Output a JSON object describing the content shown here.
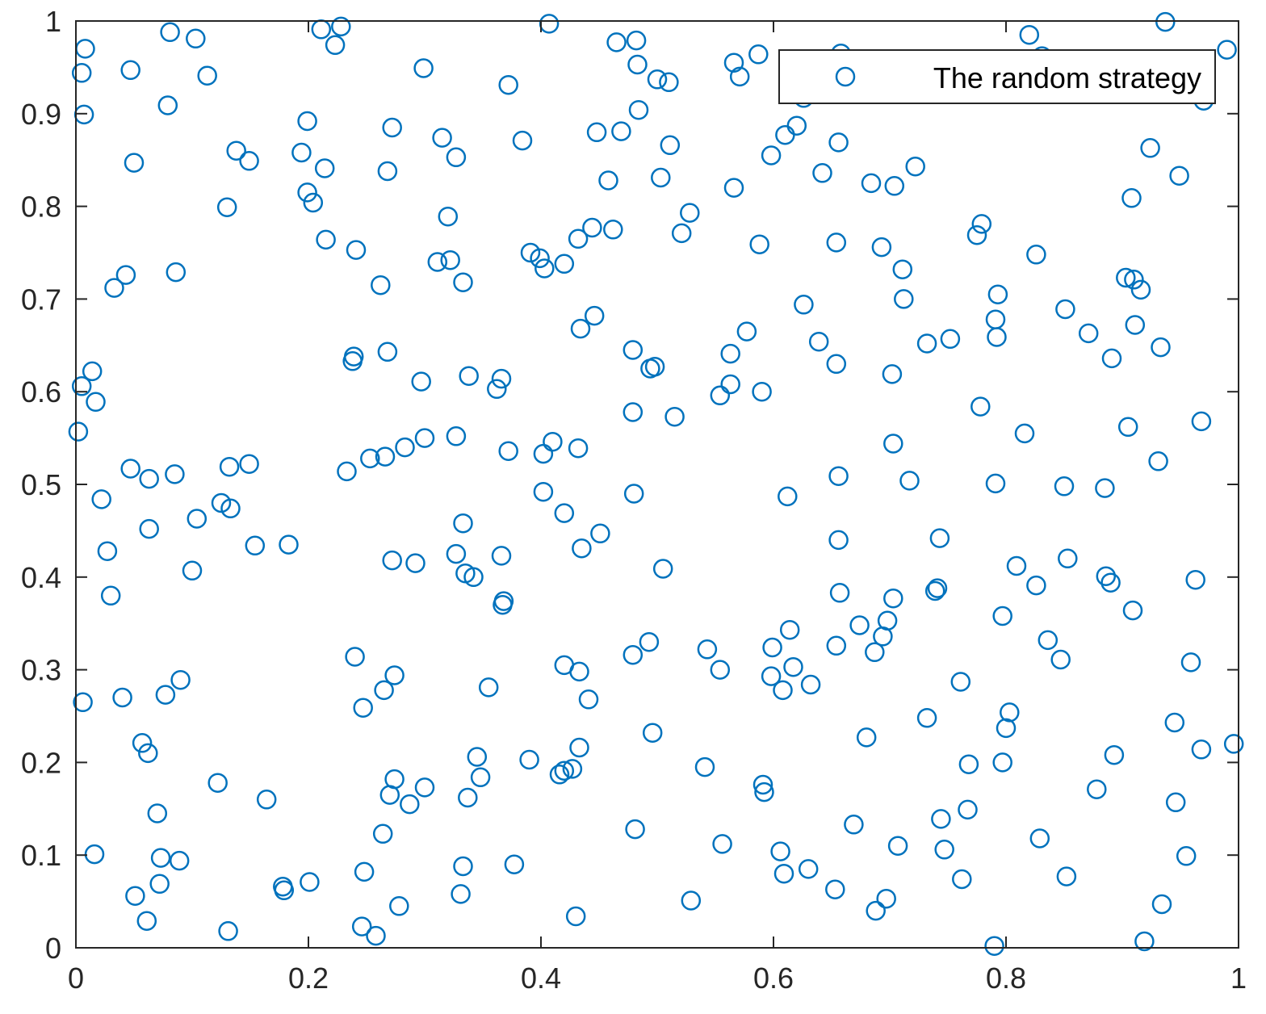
{
  "chart_data": {
    "type": "scatter",
    "title": "",
    "xlabel": "",
    "ylabel": "",
    "xlim": [
      0,
      1
    ],
    "ylim": [
      0,
      1
    ],
    "xticks": [
      "0",
      "0.2",
      "0.4",
      "0.6",
      "0.8",
      "1"
    ],
    "yticks": [
      "0",
      "0.1",
      "0.2",
      "0.3",
      "0.4",
      "0.5",
      "0.6",
      "0.7",
      "0.8",
      "0.9",
      "1"
    ],
    "grid": false,
    "legend_position": "top-right",
    "marker": "open-circle",
    "series": [
      {
        "name": "The random strategy",
        "color": "#0072BD",
        "points": [
          [
            0.005,
            0.944
          ],
          [
            0.008,
            0.97
          ],
          [
            0.007,
            0.899
          ],
          [
            0.047,
            0.947
          ],
          [
            0.081,
            0.988
          ],
          [
            0.103,
            0.981
          ],
          [
            0.079,
            0.909
          ],
          [
            0.113,
            0.941
          ],
          [
            0.05,
            0.847
          ],
          [
            0.211,
            0.991
          ],
          [
            0.228,
            0.994
          ],
          [
            0.223,
            0.974
          ],
          [
            0.407,
            0.997
          ],
          [
            0.299,
            0.949
          ],
          [
            0.372,
            0.931
          ],
          [
            0.465,
            0.977
          ],
          [
            0.482,
            0.979
          ],
          [
            0.483,
            0.953
          ],
          [
            0.5,
            0.937
          ],
          [
            0.51,
            0.934
          ],
          [
            0.566,
            0.955
          ],
          [
            0.571,
            0.94
          ],
          [
            0.587,
            0.964
          ],
          [
            0.937,
            0.999
          ],
          [
            0.82,
            0.985
          ],
          [
            0.99,
            0.969
          ],
          [
            0.97,
            0.914
          ],
          [
            0.199,
            0.892
          ],
          [
            0.194,
            0.858
          ],
          [
            0.138,
            0.86
          ],
          [
            0.149,
            0.849
          ],
          [
            0.214,
            0.841
          ],
          [
            0.272,
            0.885
          ],
          [
            0.315,
            0.874
          ],
          [
            0.327,
            0.853
          ],
          [
            0.268,
            0.838
          ],
          [
            0.384,
            0.871
          ],
          [
            0.448,
            0.88
          ],
          [
            0.469,
            0.881
          ],
          [
            0.484,
            0.904
          ],
          [
            0.511,
            0.866
          ],
          [
            0.458,
            0.828
          ],
          [
            0.503,
            0.831
          ],
          [
            0.528,
            0.793
          ],
          [
            0.521,
            0.771
          ],
          [
            0.598,
            0.855
          ],
          [
            0.61,
            0.877
          ],
          [
            0.62,
            0.887
          ],
          [
            0.656,
            0.869
          ],
          [
            0.642,
            0.836
          ],
          [
            0.566,
            0.82
          ],
          [
            0.684,
            0.825
          ],
          [
            0.704,
            0.822
          ],
          [
            0.722,
            0.843
          ],
          [
            0.924,
            0.863
          ],
          [
            0.949,
            0.833
          ],
          [
            0.908,
            0.809
          ],
          [
            0.13,
            0.799
          ],
          [
            0.199,
            0.815
          ],
          [
            0.204,
            0.804
          ],
          [
            0.215,
            0.764
          ],
          [
            0.241,
            0.753
          ],
          [
            0.32,
            0.789
          ],
          [
            0.033,
            0.712
          ],
          [
            0.043,
            0.726
          ],
          [
            0.086,
            0.729
          ],
          [
            0.262,
            0.715
          ],
          [
            0.311,
            0.74
          ],
          [
            0.322,
            0.742
          ],
          [
            0.333,
            0.718
          ],
          [
            0.391,
            0.75
          ],
          [
            0.399,
            0.744
          ],
          [
            0.403,
            0.733
          ],
          [
            0.42,
            0.738
          ],
          [
            0.432,
            0.765
          ],
          [
            0.444,
            0.777
          ],
          [
            0.462,
            0.775
          ],
          [
            0.588,
            0.759
          ],
          [
            0.654,
            0.761
          ],
          [
            0.693,
            0.756
          ],
          [
            0.711,
            0.732
          ],
          [
            0.779,
            0.781
          ],
          [
            0.775,
            0.769
          ],
          [
            0.826,
            0.748
          ],
          [
            0.712,
            0.7
          ],
          [
            0.626,
            0.694
          ],
          [
            0.639,
            0.654
          ],
          [
            0.577,
            0.665
          ],
          [
            0.563,
            0.641
          ],
          [
            0.434,
            0.668
          ],
          [
            0.446,
            0.682
          ],
          [
            0.793,
            0.705
          ],
          [
            0.791,
            0.678
          ],
          [
            0.792,
            0.659
          ],
          [
            0.851,
            0.689
          ],
          [
            0.871,
            0.663
          ],
          [
            0.903,
            0.723
          ],
          [
            0.91,
            0.721
          ],
          [
            0.916,
            0.71
          ],
          [
            0.911,
            0.672
          ],
          [
            0.933,
            0.648
          ],
          [
            0.891,
            0.636
          ],
          [
            0.732,
            0.652
          ],
          [
            0.752,
            0.657
          ],
          [
            0.654,
            0.63
          ],
          [
            0.702,
            0.619
          ],
          [
            0.014,
            0.622
          ],
          [
            0.005,
            0.606
          ],
          [
            0.017,
            0.589
          ],
          [
            0.002,
            0.557
          ],
          [
            0.239,
            0.638
          ],
          [
            0.238,
            0.633
          ],
          [
            0.268,
            0.643
          ],
          [
            0.297,
            0.611
          ],
          [
            0.338,
            0.617
          ],
          [
            0.366,
            0.614
          ],
          [
            0.362,
            0.603
          ],
          [
            0.479,
            0.645
          ],
          [
            0.494,
            0.625
          ],
          [
            0.498,
            0.627
          ],
          [
            0.479,
            0.578
          ],
          [
            0.515,
            0.573
          ],
          [
            0.563,
            0.608
          ],
          [
            0.554,
            0.596
          ],
          [
            0.59,
            0.6
          ],
          [
            0.778,
            0.584
          ],
          [
            0.968,
            0.568
          ],
          [
            0.905,
            0.562
          ],
          [
            0.816,
            0.555
          ],
          [
            0.931,
            0.525
          ],
          [
            0.047,
            0.517
          ],
          [
            0.063,
            0.506
          ],
          [
            0.085,
            0.511
          ],
          [
            0.132,
            0.519
          ],
          [
            0.149,
            0.522
          ],
          [
            0.233,
            0.514
          ],
          [
            0.253,
            0.528
          ],
          [
            0.266,
            0.53
          ],
          [
            0.283,
            0.54
          ],
          [
            0.3,
            0.55
          ],
          [
            0.327,
            0.552
          ],
          [
            0.372,
            0.536
          ],
          [
            0.402,
            0.533
          ],
          [
            0.41,
            0.546
          ],
          [
            0.432,
            0.539
          ],
          [
            0.402,
            0.492
          ],
          [
            0.48,
            0.49
          ],
          [
            0.612,
            0.487
          ],
          [
            0.656,
            0.509
          ],
          [
            0.717,
            0.504
          ],
          [
            0.703,
            0.544
          ],
          [
            0.791,
            0.501
          ],
          [
            0.85,
            0.498
          ],
          [
            0.885,
            0.496
          ],
          [
            0.022,
            0.484
          ],
          [
            0.125,
            0.48
          ],
          [
            0.133,
            0.474
          ],
          [
            0.104,
            0.463
          ],
          [
            0.063,
            0.452
          ],
          [
            0.027,
            0.428
          ],
          [
            0.1,
            0.407
          ],
          [
            0.03,
            0.38
          ],
          [
            0.154,
            0.434
          ],
          [
            0.183,
            0.435
          ],
          [
            0.333,
            0.458
          ],
          [
            0.327,
            0.425
          ],
          [
            0.366,
            0.423
          ],
          [
            0.335,
            0.404
          ],
          [
            0.342,
            0.4
          ],
          [
            0.272,
            0.418
          ],
          [
            0.292,
            0.415
          ],
          [
            0.42,
            0.469
          ],
          [
            0.451,
            0.447
          ],
          [
            0.435,
            0.431
          ],
          [
            0.505,
            0.409
          ],
          [
            0.367,
            0.37
          ],
          [
            0.368,
            0.374
          ],
          [
            0.656,
            0.44
          ],
          [
            0.743,
            0.442
          ],
          [
            0.657,
            0.383
          ],
          [
            0.739,
            0.385
          ],
          [
            0.741,
            0.388
          ],
          [
            0.809,
            0.412
          ],
          [
            0.853,
            0.42
          ],
          [
            0.826,
            0.391
          ],
          [
            0.886,
            0.401
          ],
          [
            0.89,
            0.394
          ],
          [
            0.963,
            0.397
          ],
          [
            0.703,
            0.377
          ],
          [
            0.674,
            0.348
          ],
          [
            0.698,
            0.353
          ],
          [
            0.694,
            0.336
          ],
          [
            0.797,
            0.358
          ],
          [
            0.909,
            0.364
          ],
          [
            0.614,
            0.343
          ],
          [
            0.599,
            0.324
          ],
          [
            0.654,
            0.326
          ],
          [
            0.493,
            0.33
          ],
          [
            0.479,
            0.316
          ],
          [
            0.543,
            0.322
          ],
          [
            0.554,
            0.3
          ],
          [
            0.598,
            0.293
          ],
          [
            0.617,
            0.303
          ],
          [
            0.608,
            0.278
          ],
          [
            0.632,
            0.284
          ],
          [
            0.687,
            0.319
          ],
          [
            0.836,
            0.332
          ],
          [
            0.847,
            0.311
          ],
          [
            0.959,
            0.308
          ],
          [
            0.761,
            0.287
          ],
          [
            0.006,
            0.265
          ],
          [
            0.04,
            0.27
          ],
          [
            0.077,
            0.273
          ],
          [
            0.09,
            0.289
          ],
          [
            0.24,
            0.314
          ],
          [
            0.247,
            0.259
          ],
          [
            0.265,
            0.278
          ],
          [
            0.274,
            0.294
          ],
          [
            0.355,
            0.281
          ],
          [
            0.42,
            0.305
          ],
          [
            0.433,
            0.298
          ],
          [
            0.441,
            0.268
          ],
          [
            0.732,
            0.248
          ],
          [
            0.803,
            0.254
          ],
          [
            0.8,
            0.237
          ],
          [
            0.945,
            0.243
          ],
          [
            0.996,
            0.22
          ],
          [
            0.968,
            0.214
          ],
          [
            0.057,
            0.221
          ],
          [
            0.062,
            0.21
          ],
          [
            0.496,
            0.232
          ],
          [
            0.68,
            0.227
          ],
          [
            0.122,
            0.178
          ],
          [
            0.164,
            0.16
          ],
          [
            0.07,
            0.145
          ],
          [
            0.345,
            0.206
          ],
          [
            0.348,
            0.184
          ],
          [
            0.39,
            0.203
          ],
          [
            0.416,
            0.187
          ],
          [
            0.42,
            0.191
          ],
          [
            0.427,
            0.193
          ],
          [
            0.433,
            0.216
          ],
          [
            0.337,
            0.162
          ],
          [
            0.274,
            0.182
          ],
          [
            0.27,
            0.165
          ],
          [
            0.287,
            0.155
          ],
          [
            0.3,
            0.173
          ],
          [
            0.541,
            0.195
          ],
          [
            0.591,
            0.176
          ],
          [
            0.592,
            0.168
          ],
          [
            0.768,
            0.198
          ],
          [
            0.797,
            0.2
          ],
          [
            0.893,
            0.208
          ],
          [
            0.878,
            0.171
          ],
          [
            0.946,
            0.157
          ],
          [
            0.767,
            0.149
          ],
          [
            0.744,
            0.139
          ],
          [
            0.669,
            0.133
          ],
          [
            0.481,
            0.128
          ],
          [
            0.264,
            0.123
          ],
          [
            0.829,
            0.118
          ],
          [
            0.556,
            0.112
          ],
          [
            0.606,
            0.104
          ],
          [
            0.707,
            0.11
          ],
          [
            0.747,
            0.106
          ],
          [
            0.955,
            0.099
          ],
          [
            0.016,
            0.101
          ],
          [
            0.073,
            0.097
          ],
          [
            0.089,
            0.094
          ],
          [
            0.333,
            0.088
          ],
          [
            0.377,
            0.09
          ],
          [
            0.248,
            0.082
          ],
          [
            0.201,
            0.071
          ],
          [
            0.178,
            0.066
          ],
          [
            0.179,
            0.062
          ],
          [
            0.072,
            0.069
          ],
          [
            0.051,
            0.056
          ],
          [
            0.061,
            0.029
          ],
          [
            0.131,
            0.018
          ],
          [
            0.246,
            0.023
          ],
          [
            0.258,
            0.013
          ],
          [
            0.278,
            0.045
          ],
          [
            0.331,
            0.058
          ],
          [
            0.43,
            0.034
          ],
          [
            0.529,
            0.051
          ],
          [
            0.609,
            0.08
          ],
          [
            0.63,
            0.085
          ],
          [
            0.653,
            0.063
          ],
          [
            0.762,
            0.074
          ],
          [
            0.852,
            0.077
          ],
          [
            0.688,
            0.04
          ],
          [
            0.697,
            0.053
          ],
          [
            0.934,
            0.047
          ],
          [
            0.79,
            0.002
          ],
          [
            0.919,
            0.007
          ],
          [
            0.658,
            0.965
          ],
          [
            0.626,
            0.917
          ],
          [
            0.831,
            0.962
          ]
        ]
      }
    ]
  }
}
